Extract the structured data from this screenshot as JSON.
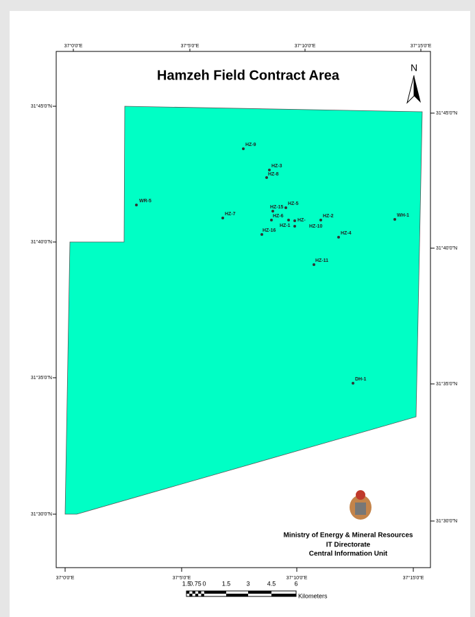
{
  "title": "Hamzeh Field Contract Area",
  "north": "N",
  "top_labels": [
    "37°0'0\"E",
    "37°5'0\"E",
    "37°10'0\"E",
    "37°15'0\"E"
  ],
  "bottom_labels": [
    "37°0'0\"E",
    "37°5'0\"E",
    "37°10'0\"E",
    "37°15'0\"E"
  ],
  "left_labels": [
    "31°45'0\"N",
    "31°40'0\"N",
    "31°35'0\"N",
    "31°30'0\"N"
  ],
  "right_labels": [
    "31°45'0\"N",
    "31°40'0\"N",
    "31°35'0\"N",
    "31°30'0\"N"
  ],
  "wells": [
    "HZ-9",
    "HZ-3",
    "HZ-8",
    "WR-5",
    "HZ-7",
    "HZ-15",
    "HZ-5",
    "HZ-6",
    "HZ-",
    "HZ-1",
    "HZ-2",
    "HZ-10",
    "HZ-16",
    "HZ-4",
    "WH-1",
    "HZ-11",
    "DH-1"
  ],
  "credits": [
    "Ministry of Energy & Mineral Resources",
    "IT Directorate",
    "Central Information Unit"
  ],
  "scale": {
    "labels": [
      "1.5",
      "0.75",
      "0",
      "1.5",
      "3",
      "4.5",
      "6"
    ],
    "unit": "Kilometers"
  }
}
